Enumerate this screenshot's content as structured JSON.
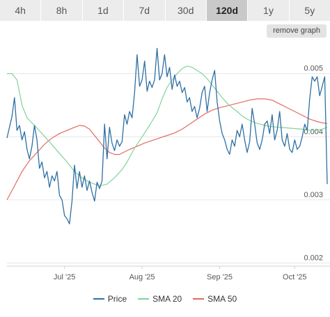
{
  "tabs": [
    {
      "label": "4h",
      "active": false
    },
    {
      "label": "8h",
      "active": false
    },
    {
      "label": "1d",
      "active": false
    },
    {
      "label": "7d",
      "active": false
    },
    {
      "label": "30d",
      "active": false
    },
    {
      "label": "120d",
      "active": true
    },
    {
      "label": "1y",
      "active": false
    },
    {
      "label": "5y",
      "active": false
    }
  ],
  "remove_graph_label": "remove graph",
  "colors": {
    "price": "#2e6fa3",
    "sma20": "#7fd39a",
    "sma50": "#e26a5f",
    "grid": "#e6e6e6",
    "axis_text": "#555555"
  },
  "chart_data": {
    "type": "line",
    "title": "",
    "xlabel": "",
    "ylabel": "",
    "x_tick_labels": [
      {
        "label": "Jul '25",
        "x": 23
      },
      {
        "label": "Aug '25",
        "x": 54
      },
      {
        "label": "Sep '25",
        "x": 85
      },
      {
        "label": "Oct '25",
        "x": 115
      }
    ],
    "y_ticks": [
      0.002,
      0.003,
      0.004,
      0.005
    ],
    "y_tick_labels": [
      "0.002",
      "0.003",
      "0.004",
      "0.005"
    ],
    "xlim": [
      0,
      128
    ],
    "ylim": [
      0.00195,
      0.00546
    ],
    "legend": {
      "placement": "bottom"
    },
    "series": [
      {
        "name": "Price",
        "color": "#2e6fa3",
        "points": [
          [
            0,
            0.00398
          ],
          [
            1,
            0.00415
          ],
          [
            2,
            0.00432
          ],
          [
            3,
            0.00462
          ],
          [
            4,
            0.0041
          ],
          [
            5,
            0.00418
          ],
          [
            6,
            0.00395
          ],
          [
            7,
            0.00408
          ],
          [
            8,
            0.0038
          ],
          [
            9,
            0.00365
          ],
          [
            10,
            0.00385
          ],
          [
            11,
            0.00418
          ],
          [
            12,
            0.00395
          ],
          [
            13,
            0.0035
          ],
          [
            14,
            0.0036
          ],
          [
            15,
            0.00335
          ],
          [
            16,
            0.00345
          ],
          [
            17,
            0.0032
          ],
          [
            18,
            0.00338
          ],
          [
            19,
            0.0033
          ],
          [
            20,
            0.00345
          ],
          [
            21,
            0.00307
          ],
          [
            22,
            0.003
          ],
          [
            23,
            0.00275
          ],
          [
            24,
            0.0027
          ],
          [
            25,
            0.00262
          ],
          [
            26,
            0.00298
          ],
          [
            27,
            0.00355
          ],
          [
            28,
            0.00318
          ],
          [
            29,
            0.00345
          ],
          [
            30,
            0.0032
          ],
          [
            31,
            0.00338
          ],
          [
            32,
            0.00315
          ],
          [
            33,
            0.0033
          ],
          [
            34,
            0.00312
          ],
          [
            35,
            0.00298
          ],
          [
            36,
            0.00328
          ],
          [
            37,
            0.00318
          ],
          [
            38,
            0.0033
          ],
          [
            39,
            0.0042
          ],
          [
            40,
            0.00365
          ],
          [
            41,
            0.00415
          ],
          [
            42,
            0.0039
          ],
          [
            43,
            0.00378
          ],
          [
            44,
            0.00395
          ],
          [
            45,
            0.00385
          ],
          [
            46,
            0.00392
          ],
          [
            47,
            0.00435
          ],
          [
            48,
            0.0042
          ],
          [
            49,
            0.0044
          ],
          [
            50,
            0.0043
          ],
          [
            51,
            0.0047
          ],
          [
            52,
            0.0053
          ],
          [
            53,
            0.0048
          ],
          [
            54,
            0.0049
          ],
          [
            55,
            0.0052
          ],
          [
            56,
            0.00472
          ],
          [
            57,
            0.00488
          ],
          [
            58,
            0.00478
          ],
          [
            59,
            0.0049
          ],
          [
            60,
            0.0054
          ],
          [
            61,
            0.0049
          ],
          [
            62,
            0.005
          ],
          [
            63,
            0.0053
          ],
          [
            64,
            0.00495
          ],
          [
            65,
            0.0051
          ],
          [
            66,
            0.00475
          ],
          [
            67,
            0.00498
          ],
          [
            68,
            0.0048
          ],
          [
            69,
            0.00488
          ],
          [
            70,
            0.0047
          ],
          [
            71,
            0.00478
          ],
          [
            72,
            0.00455
          ],
          [
            73,
            0.00462
          ],
          [
            74,
            0.0044
          ],
          [
            75,
            0.00448
          ],
          [
            76,
            0.0043
          ],
          [
            77,
            0.00445
          ],
          [
            78,
            0.0047
          ],
          [
            79,
            0.0048
          ],
          [
            80,
            0.0044
          ],
          [
            81,
            0.0047
          ],
          [
            82,
            0.0049
          ],
          [
            83,
            0.00505
          ],
          [
            84,
            0.00455
          ],
          [
            85,
            0.00425
          ],
          [
            86,
            0.00405
          ],
          [
            87,
            0.00395
          ],
          [
            88,
            0.0038
          ],
          [
            89,
            0.00372
          ],
          [
            90,
            0.00395
          ],
          [
            91,
            0.00385
          ],
          [
            92,
            0.0041
          ],
          [
            93,
            0.004
          ],
          [
            94,
            0.0042
          ],
          [
            95,
            0.00395
          ],
          [
            96,
            0.00375
          ],
          [
            97,
            0.00392
          ],
          [
            98,
            0.00445
          ],
          [
            99,
            0.0042
          ],
          [
            100,
            0.0039
          ],
          [
            101,
            0.0038
          ],
          [
            102,
            0.00395
          ],
          [
            103,
            0.0042
          ],
          [
            104,
            0.00425
          ],
          [
            105,
            0.00405
          ],
          [
            106,
            0.00435
          ],
          [
            107,
            0.00395
          ],
          [
            108,
            0.0041
          ],
          [
            109,
            0.0044
          ],
          [
            110,
            0.00395
          ],
          [
            111,
            0.00385
          ],
          [
            112,
            0.00405
          ],
          [
            113,
            0.0038
          ],
          [
            114,
            0.00375
          ],
          [
            115,
            0.00395
          ],
          [
            116,
            0.0038
          ],
          [
            117,
            0.00385
          ],
          [
            118,
            0.004
          ],
          [
            119,
            0.0042
          ],
          [
            120,
            0.0041
          ],
          [
            121,
            0.0046
          ],
          [
            122,
            0.00495
          ],
          [
            123,
            0.00488
          ],
          [
            124,
            0.00495
          ],
          [
            125,
            0.00465
          ],
          [
            126,
            0.0048
          ],
          [
            127,
            0.00495
          ],
          [
            128,
            0.00325
          ]
        ]
      },
      {
        "name": "SMA 20",
        "color": "#7fd39a",
        "points": [
          [
            0,
            0.005
          ],
          [
            2,
            0.005
          ],
          [
            4,
            0.0049
          ],
          [
            6,
            0.0045
          ],
          [
            8,
            0.0043
          ],
          [
            11,
            0.00418
          ],
          [
            14,
            0.00405
          ],
          [
            17,
            0.00392
          ],
          [
            20,
            0.00378
          ],
          [
            24,
            0.0036
          ],
          [
            27,
            0.00345
          ],
          [
            30,
            0.00335
          ],
          [
            33,
            0.00328
          ],
          [
            37,
            0.00322
          ],
          [
            40,
            0.00325
          ],
          [
            43,
            0.00335
          ],
          [
            46,
            0.00348
          ],
          [
            48,
            0.0036
          ],
          [
            51,
            0.00382
          ],
          [
            54,
            0.004
          ],
          [
            57,
            0.00418
          ],
          [
            60,
            0.00438
          ],
          [
            62,
            0.0046
          ],
          [
            64,
            0.00478
          ],
          [
            66,
            0.0049
          ],
          [
            68,
            0.005
          ],
          [
            70,
            0.00508
          ],
          [
            72,
            0.00512
          ],
          [
            74,
            0.0051
          ],
          [
            76,
            0.00505
          ],
          [
            78,
            0.005
          ],
          [
            80,
            0.00492
          ],
          [
            82,
            0.00482
          ],
          [
            84,
            0.00472
          ],
          [
            86,
            0.00462
          ],
          [
            88,
            0.00453
          ],
          [
            90,
            0.00446
          ],
          [
            92,
            0.0044
          ],
          [
            94,
            0.00433
          ],
          [
            96,
            0.00428
          ],
          [
            98,
            0.00424
          ],
          [
            100,
            0.00421
          ],
          [
            103,
            0.00418
          ],
          [
            106,
            0.00416
          ],
          [
            109,
            0.00415
          ],
          [
            112,
            0.00414
          ],
          [
            115,
            0.00413
          ],
          [
            118,
            0.00412
          ],
          [
            121,
            0.0041
          ],
          [
            124,
            0.0041
          ],
          [
            126,
            0.00412
          ],
          [
            128,
            0.00415
          ]
        ]
      },
      {
        "name": "SMA 50",
        "color": "#e26a5f",
        "points": [
          [
            0,
            0.003
          ],
          [
            3,
            0.00322
          ],
          [
            6,
            0.00345
          ],
          [
            9,
            0.00362
          ],
          [
            12,
            0.00375
          ],
          [
            15,
            0.00388
          ],
          [
            18,
            0.00398
          ],
          [
            21,
            0.00405
          ],
          [
            24,
            0.0041
          ],
          [
            27,
            0.00415
          ],
          [
            29,
            0.00418
          ],
          [
            31,
            0.00417
          ],
          [
            33,
            0.00412
          ],
          [
            35,
            0.00402
          ],
          [
            37,
            0.00392
          ],
          [
            39,
            0.00382
          ],
          [
            41,
            0.00375
          ],
          [
            43,
            0.00372
          ],
          [
            45,
            0.00372
          ],
          [
            47,
            0.00376
          ],
          [
            49,
            0.0038
          ],
          [
            52,
            0.00385
          ],
          [
            55,
            0.0039
          ],
          [
            58,
            0.00394
          ],
          [
            61,
            0.00398
          ],
          [
            64,
            0.00402
          ],
          [
            67,
            0.00406
          ],
          [
            70,
            0.00412
          ],
          [
            73,
            0.0042
          ],
          [
            76,
            0.00428
          ],
          [
            79,
            0.00436
          ],
          [
            82,
            0.00442
          ],
          [
            85,
            0.00446
          ],
          [
            88,
            0.00449
          ],
          [
            91,
            0.00452
          ],
          [
            94,
            0.00455
          ],
          [
            97,
            0.00458
          ],
          [
            100,
            0.0046
          ],
          [
            103,
            0.0046
          ],
          [
            106,
            0.00458
          ],
          [
            109,
            0.00452
          ],
          [
            112,
            0.00446
          ],
          [
            115,
            0.0044
          ],
          [
            118,
            0.00434
          ],
          [
            121,
            0.00428
          ],
          [
            124,
            0.00424
          ],
          [
            126,
            0.00422
          ],
          [
            128,
            0.00421
          ]
        ]
      }
    ]
  }
}
